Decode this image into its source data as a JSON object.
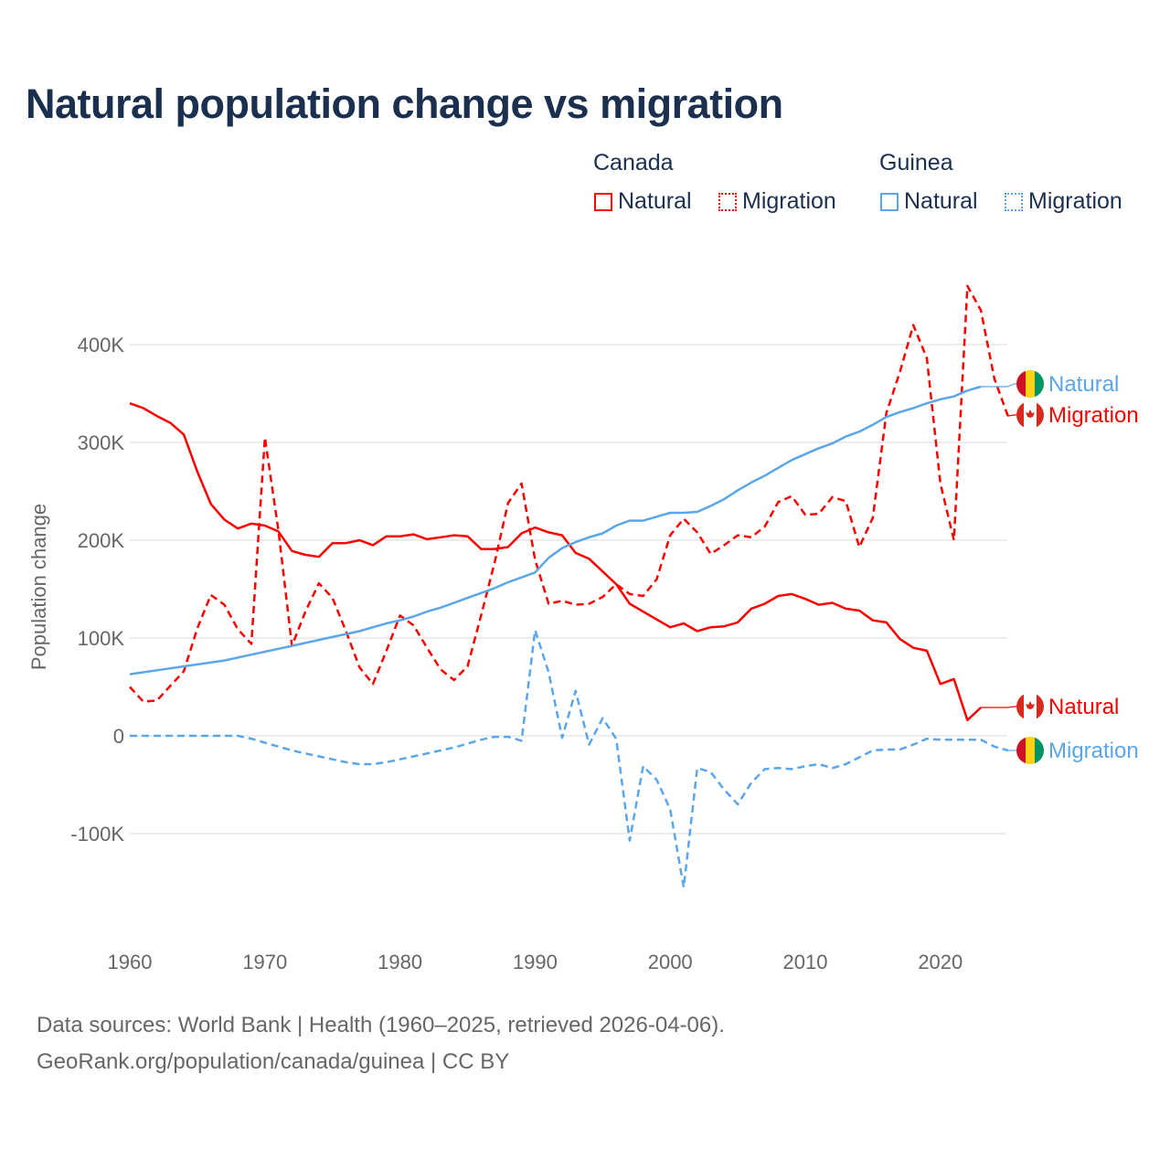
{
  "title": "Natural population change vs migration",
  "legend": {
    "groups": [
      {
        "name": "Canada",
        "items": [
          {
            "label": "Natural",
            "style": "solid",
            "color": "#ff0000"
          },
          {
            "label": "Migration",
            "style": "dotted",
            "color": "#ff0000"
          }
        ]
      },
      {
        "name": "Guinea",
        "items": [
          {
            "label": "Natural",
            "style": "solid",
            "color": "#5ba6ea"
          },
          {
            "label": "Migration",
            "style": "dotted",
            "color": "#5ba6ea"
          }
        ]
      }
    ]
  },
  "footer": {
    "line1": "Data sources: World Bank | Health (1960–2025, retrieved 2026-04-06).",
    "line2": "GeoRank.org/population/canada/guinea | CC BY"
  },
  "chart_data": {
    "type": "line",
    "title": "Natural population change vs migration",
    "ylabel": "Population change",
    "xlabel": "",
    "xlim": [
      1960,
      2025
    ],
    "ylim": [
      -185000,
      470000
    ],
    "x_ticks": [
      1960,
      1970,
      1980,
      1990,
      2000,
      2010,
      2020
    ],
    "x_tick_labels": [
      "1960",
      "1970",
      "1980",
      "1990",
      "2000",
      "2010",
      "2020"
    ],
    "y_ticks": [
      -100000,
      0,
      100000,
      200000,
      300000,
      400000
    ],
    "y_tick_labels": [
      "-100K",
      "0",
      "100K",
      "200K",
      "300K",
      "400K"
    ],
    "grid": true,
    "start_year": 1960,
    "series": [
      {
        "name": "Canada Natural",
        "end_label": "Natural",
        "country": "Canada",
        "color": "#ff0000",
        "dash": false,
        "flag": "canada",
        "values": [
          340,
          335,
          327,
          320,
          308,
          270,
          237,
          221,
          212,
          217,
          215,
          209,
          189,
          185,
          183,
          197,
          197,
          200,
          195,
          204,
          204,
          206,
          201,
          203,
          205,
          204,
          191,
          191,
          193,
          207,
          213,
          208,
          205,
          187,
          181,
          168,
          155,
          135,
          127,
          119,
          111,
          115,
          107,
          111,
          112,
          116,
          130,
          135,
          143,
          145,
          140,
          134,
          136,
          130,
          128,
          118,
          116,
          99,
          90,
          87,
          53,
          58,
          16,
          29
        ]
      },
      {
        "name": "Canada Migration",
        "end_label": "Migration",
        "country": "Canada",
        "color": "#ff0000",
        "dash": true,
        "flag": "canada",
        "values": [
          50,
          35,
          36,
          51,
          66,
          110,
          144,
          134,
          109,
          94,
          305,
          210,
          92,
          127,
          156,
          141,
          107,
          70,
          53,
          87,
          123,
          113,
          90,
          68,
          57,
          71,
          123,
          177,
          238,
          258,
          180,
          135,
          138,
          134,
          135,
          142,
          155,
          145,
          143,
          160,
          205,
          222,
          208,
          186,
          195,
          205,
          203,
          214,
          239,
          245,
          226,
          227,
          244,
          240,
          193,
          223,
          330,
          372,
          420,
          386,
          258,
          200,
          460,
          435,
          365,
          327
        ]
      },
      {
        "name": "Guinea Natural",
        "end_label": "Natural",
        "country": "Guinea",
        "color": "#5ba6ea",
        "dash": false,
        "flag": "guinea",
        "values": [
          63,
          65,
          67,
          69,
          71,
          73,
          75,
          77,
          80,
          83,
          86,
          89,
          92,
          95,
          98,
          101,
          104,
          107,
          111,
          115,
          118,
          122,
          127,
          131,
          136,
          141,
          146,
          151,
          157,
          162,
          167,
          182,
          192,
          198,
          203,
          207,
          215,
          220,
          220,
          224,
          228,
          228,
          229,
          235,
          242,
          251,
          259,
          266,
          274,
          282,
          288,
          294,
          299,
          306,
          311,
          318,
          326,
          331,
          335,
          340,
          344,
          347,
          353,
          357
        ]
      },
      {
        "name": "Guinea Migration",
        "end_label": "Migration",
        "country": "Guinea",
        "color": "#5ba6ea",
        "dash": true,
        "flag": "guinea",
        "values": [
          0,
          0,
          0,
          0,
          0,
          0,
          0,
          0,
          0,
          -3,
          -7,
          -11,
          -15,
          -18,
          -21,
          -24,
          -27,
          -29,
          -29,
          -27,
          -24,
          -21,
          -18,
          -15,
          -12,
          -8,
          -4,
          -1,
          -1,
          -5,
          108,
          65,
          -2,
          46,
          -9,
          18,
          -3,
          -107,
          -31,
          -45,
          -75,
          -155,
          -33,
          -37,
          -55,
          -70,
          -48,
          -34,
          -33,
          -34,
          -31,
          -29,
          -33,
          -29,
          -22,
          -15,
          -14,
          -14,
          -9,
          -3,
          -4,
          -4,
          -4,
          -4,
          -11,
          -15
        ]
      }
    ],
    "values_unit": "thousands"
  }
}
